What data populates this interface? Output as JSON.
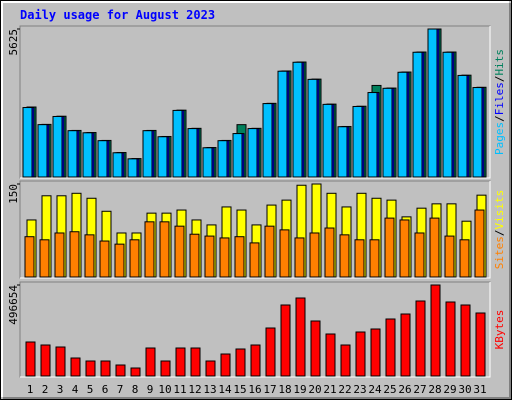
{
  "chart_data": {
    "type": "bar",
    "title": "Daily usage for August 2023",
    "categories": [
      "1",
      "2",
      "3",
      "4",
      "5",
      "6",
      "7",
      "8",
      "9",
      "10",
      "11",
      "12",
      "13",
      "14",
      "15",
      "16",
      "17",
      "18",
      "19",
      "20",
      "21",
      "22",
      "23",
      "24",
      "25",
      "26",
      "27",
      "28",
      "29",
      "30",
      "31"
    ],
    "category_label_colors": [
      "#000000",
      "#000000",
      "#000000",
      "#000000",
      "#00805c",
      "#00805c",
      "#000000",
      "#000000",
      "#000000",
      "#000000",
      "#000000",
      "#00805c",
      "#00805c",
      "#000000",
      "#000000",
      "#000000",
      "#000000",
      "#000000",
      "#00805c",
      "#00805c",
      "#000000",
      "#000000",
      "#000000",
      "#000000",
      "#000000",
      "#00805c",
      "#00805c",
      "#000000",
      "#000000",
      "#000000",
      "#000000"
    ],
    "panels": [
      {
        "ylim": [
          0,
          5625
        ],
        "yticks": [
          5625
        ],
        "series": [
          {
            "name": "Pages",
            "color": "#00c0ff",
            "values": [
              2640,
              1990,
              2300,
              1760,
              1680,
              1380,
              920,
              690,
              1760,
              1530,
              2530,
              1840,
              1110,
              1380,
              1650,
              1840,
              2790,
              4020,
              4360,
              3710,
              2760,
              1910,
              2680,
              3210,
              3370,
              3980,
              4740,
              5625,
              4740,
              3860,
              3400
            ]
          },
          {
            "name": "Files",
            "color": "#0000ff",
            "values": [
              2640,
              1990,
              2300,
              1760,
              1680,
              1380,
              920,
              690,
              1760,
              1530,
              2530,
              1840,
              1110,
              1380,
              1650,
              1840,
              2790,
              4020,
              4360,
              3710,
              2760,
              1910,
              2680,
              3210,
              3370,
              3980,
              4740,
              5625,
              4740,
              3860,
              3400
            ]
          },
          {
            "name": "Hits",
            "color": "#00805c",
            "values": [
              2660,
              2000,
              2310,
              1770,
              1690,
              1390,
              930,
              700,
              1770,
              1540,
              2540,
              1850,
              1120,
              1390,
              1990,
              1850,
              2800,
              4030,
              4370,
              3720,
              2770,
              1920,
              2690,
              3480,
              3380,
              3990,
              4750,
              5625,
              4750,
              3870,
              3410
            ]
          }
        ]
      },
      {
        "ylim": [
          0,
          150
        ],
        "yticks": [
          150
        ],
        "series": [
          {
            "name": "Sites",
            "color": "#ff8000",
            "values": [
              65,
              60,
              71,
              73,
              68,
              58,
              53,
              60,
              89,
              89,
              82,
              69,
              66,
              63,
              65,
              55,
              82,
              76,
              63,
              71,
              79,
              68,
              60,
              60,
              95,
              92,
              71,
              95,
              66,
              60,
              108
            ]
          },
          {
            "name": "Visits",
            "color": "#ffff00",
            "values": [
              92,
              131,
              131,
              135,
              127,
              106,
              71,
              71,
              103,
              103,
              108,
              92,
              84,
              113,
              108,
              84,
              116,
              124,
              148,
              150,
              135,
              113,
              135,
              127,
              124,
              97,
              111,
              118,
              118,
              90,
              132
            ]
          }
        ]
      },
      {
        "ylim": [
          0,
          496654
        ],
        "yticks": [
          496654
        ],
        "series": [
          {
            "name": "KBytes",
            "color": "#ff0000",
            "values": [
              185570,
              169200,
              158280,
              98240,
              81870,
              81870,
              60040,
              43660,
              152820,
              81870,
              152820,
              152820,
              81870,
              120080,
              147370,
              169200,
              261980,
              387520,
              425720,
              300190,
              229240,
              169200,
              240150,
              256530,
              311110,
              338400,
              409350,
              496654,
              403890,
              387520,
              343850
            ]
          }
        ]
      }
    ]
  }
}
